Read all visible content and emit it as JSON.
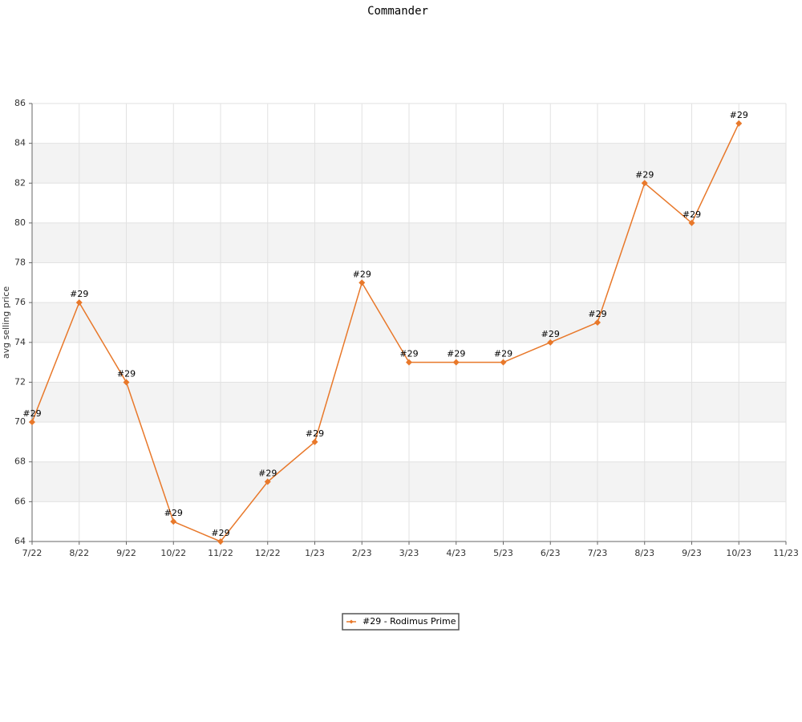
{
  "chart_data": {
    "type": "line",
    "title": "Commander",
    "y_label": "avg selling price",
    "categories": [
      "7/22",
      "8/22",
      "9/22",
      "10/22",
      "11/22",
      "12/22",
      "1/23",
      "2/23",
      "3/23",
      "4/23",
      "5/23",
      "6/23",
      "7/23",
      "8/23",
      "9/23",
      "10/23",
      "11/23"
    ],
    "series": [
      {
        "name": "#29 - Rodimus Prime",
        "color": "#e8782a",
        "values": [
          70,
          76,
          72,
          65,
          64,
          67,
          69,
          77,
          73,
          73,
          73,
          74,
          75,
          82,
          80,
          85,
          null
        ],
        "point_labels": [
          "#29",
          "#29",
          "#29",
          "#29",
          "#29",
          "#29",
          "#29",
          "#29",
          "#29",
          "#29",
          "#29",
          "#29",
          "#29",
          "#29",
          "#29",
          "#29",
          null
        ]
      }
    ],
    "ylim": [
      64,
      86
    ],
    "yticks": [
      64,
      66,
      68,
      70,
      72,
      74,
      76,
      78,
      80,
      82,
      84,
      86
    ],
    "grid": true,
    "legend": "bottom"
  }
}
